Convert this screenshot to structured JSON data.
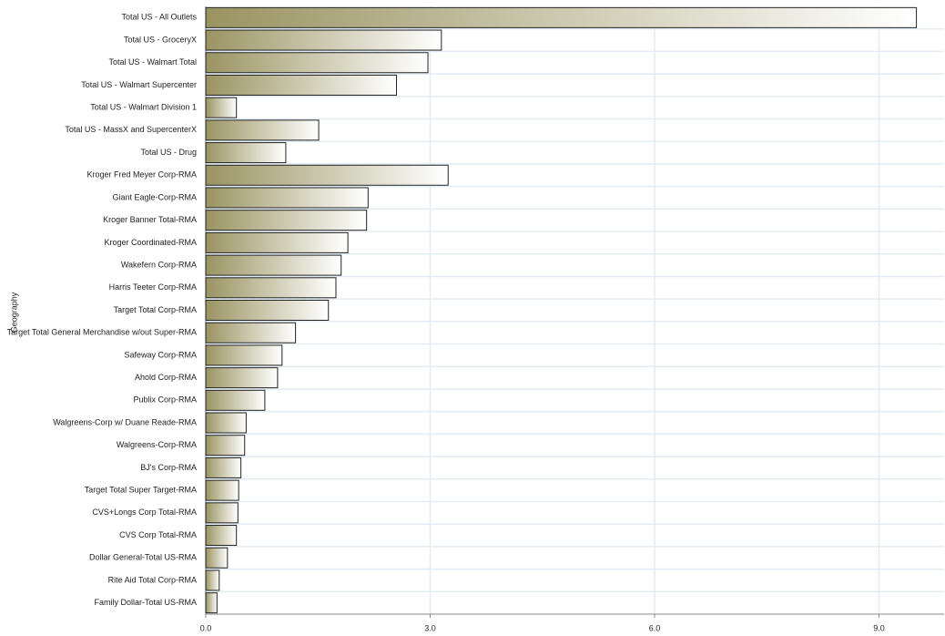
{
  "chart_data": {
    "type": "barh",
    "y_label": "Geography",
    "categories": [
      "Total US - All Outlets",
      "Total US - GroceryX",
      "Total US - Walmart Total",
      "Total US - Walmart Supercenter",
      "Total US - Walmart Division 1",
      "Total US - MassX and SupercenterX",
      "Total US - Drug",
      "Kroger Fred Meyer Corp-RMA",
      "Giant Eagle-Corp-RMA",
      "Kroger Banner Total-RMA",
      "Kroger Coordinated-RMA",
      "Wakefern Corp-RMA",
      "Harris Teeter Corp-RMA",
      "Target Total Corp-RMA",
      "Target Total General Merchandise w/out Super-RMA",
      "Safeway Corp-RMA",
      "Ahold Corp-RMA",
      "Publix Corp-RMA",
      "Walgreens-Corp w/ Duane Reade-RMA",
      "Walgreens-Corp-RMA",
      "BJ's Corp-RMA",
      "Target Total Super Target-RMA",
      "CVS+Longs Corp Total-RMA",
      "CVS Corp Total-RMA",
      "Dollar General-Total US-RMA",
      "Rite Aid Total Corp-RMA",
      "Family Dollar-Total US-RMA"
    ],
    "values": [
      9.5,
      3.15,
      2.97,
      2.55,
      0.41,
      1.51,
      1.07,
      3.24,
      2.17,
      2.15,
      1.9,
      1.81,
      1.74,
      1.64,
      1.2,
      1.02,
      0.96,
      0.79,
      0.54,
      0.52,
      0.47,
      0.44,
      0.43,
      0.41,
      0.29,
      0.18,
      0.15
    ],
    "color": "#9a9462",
    "xlim": [
      0,
      9.87
    ],
    "xticks": [
      {
        "value": 0,
        "label": "0.0"
      },
      {
        "value": 3,
        "label": "3.0"
      },
      {
        "value": 6,
        "label": "6.0"
      },
      {
        "value": 9,
        "label": "9.0"
      }
    ],
    "grid": true
  }
}
